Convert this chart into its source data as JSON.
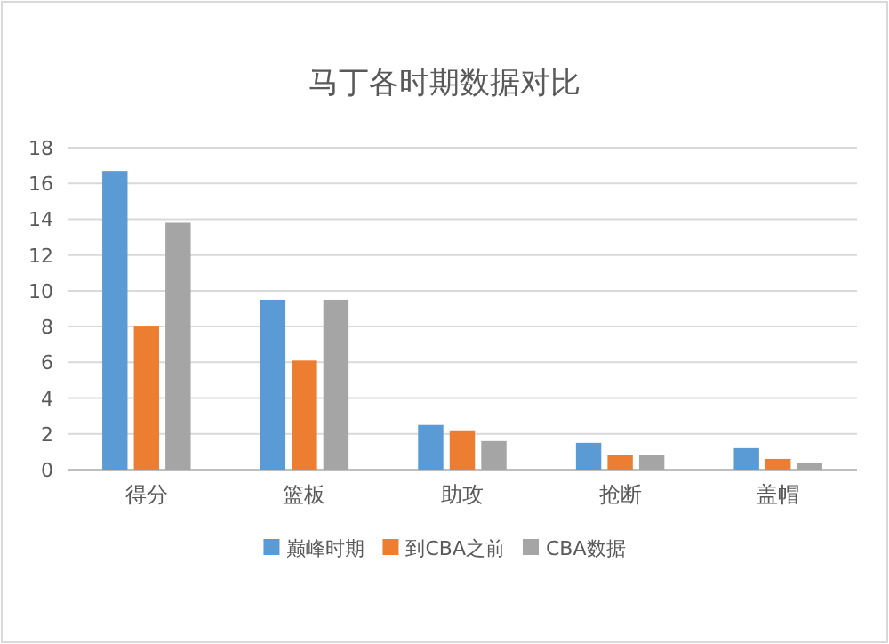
{
  "chart_data": {
    "type": "bar",
    "title": "马丁各时期数据对比",
    "categories": [
      "得分",
      "篮板",
      "助攻",
      "抢断",
      "盖帽"
    ],
    "series": [
      {
        "name": "巅峰时期",
        "color": "#5b9bd5",
        "values": [
          16.7,
          9.5,
          2.5,
          1.5,
          1.2
        ]
      },
      {
        "name": "到CBA之前",
        "color": "#ed7d31",
        "values": [
          8.0,
          6.1,
          2.2,
          0.8,
          0.6
        ]
      },
      {
        "name": "CBA数据",
        "color": "#a5a5a5",
        "values": [
          13.8,
          9.5,
          1.6,
          0.8,
          0.4
        ]
      }
    ],
    "ylim": [
      0,
      18
    ],
    "yticks": [
      0,
      2,
      4,
      6,
      8,
      10,
      12,
      14,
      16,
      18
    ],
    "grid": "y",
    "legend": "bottom"
  }
}
